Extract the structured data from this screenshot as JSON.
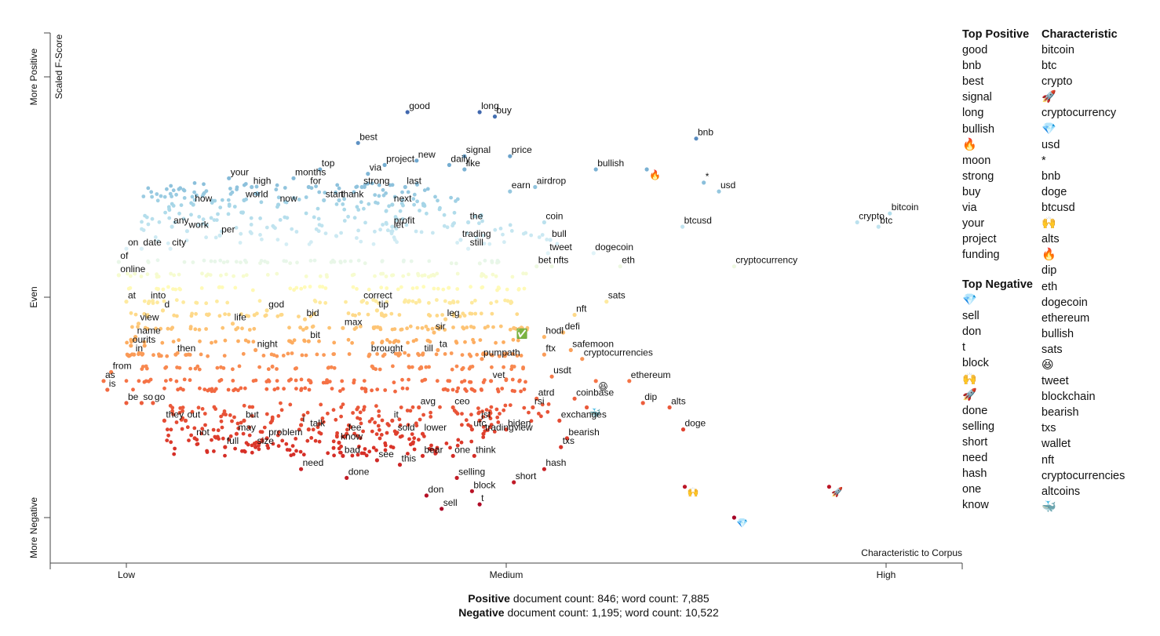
{
  "chart_data": {
    "type": "scatter",
    "xlabel": "Characteristic to Corpus",
    "ylabel": "Scaled F-Score",
    "x_ticks": [
      "Low",
      "Medium",
      "High"
    ],
    "y_ticks": [
      "More Negative",
      "Even",
      "More Positive"
    ],
    "labeled_points": [
      {
        "t": "good",
        "x": 0.37,
        "y": 0.92
      },
      {
        "t": "long",
        "x": 0.465,
        "y": 0.92
      },
      {
        "t": "buy",
        "x": 0.485,
        "y": 0.91
      },
      {
        "t": "best",
        "x": 0.305,
        "y": 0.85
      },
      {
        "t": "bnb",
        "x": 0.75,
        "y": 0.86
      },
      {
        "t": "signal",
        "x": 0.445,
        "y": 0.82
      },
      {
        "t": "price",
        "x": 0.505,
        "y": 0.82
      },
      {
        "t": "project",
        "x": 0.34,
        "y": 0.8
      },
      {
        "t": "new",
        "x": 0.382,
        "y": 0.81
      },
      {
        "t": "daily",
        "x": 0.425,
        "y": 0.8
      },
      {
        "t": "like",
        "x": 0.445,
        "y": 0.79
      },
      {
        "t": "bullish",
        "x": 0.618,
        "y": 0.79
      },
      {
        "t": "🔥",
        "x": 0.685,
        "y": 0.79
      },
      {
        "t": "top",
        "x": 0.255,
        "y": 0.79
      },
      {
        "t": "via",
        "x": 0.318,
        "y": 0.78
      },
      {
        "t": "your",
        "x": 0.135,
        "y": 0.77
      },
      {
        "t": "months",
        "x": 0.22,
        "y": 0.77
      },
      {
        "t": "*",
        "x": 0.76,
        "y": 0.76
      },
      {
        "t": "high",
        "x": 0.165,
        "y": 0.75
      },
      {
        "t": "for",
        "x": 0.24,
        "y": 0.75
      },
      {
        "t": "strong",
        "x": 0.31,
        "y": 0.75
      },
      {
        "t": "last",
        "x": 0.367,
        "y": 0.75
      },
      {
        "t": "airdrop",
        "x": 0.538,
        "y": 0.75
      },
      {
        "t": "usd",
        "x": 0.78,
        "y": 0.74
      },
      {
        "t": "world",
        "x": 0.155,
        "y": 0.72
      },
      {
        "t": "start",
        "x": 0.26,
        "y": 0.72
      },
      {
        "t": "thank",
        "x": 0.28,
        "y": 0.72
      },
      {
        "t": "now",
        "x": 0.2,
        "y": 0.71
      },
      {
        "t": "earn",
        "x": 0.505,
        "y": 0.74
      },
      {
        "t": "next",
        "x": 0.35,
        "y": 0.71
      },
      {
        "t": "crypto",
        "x": 0.962,
        "y": 0.67
      },
      {
        "t": "bitcoin",
        "x": 1.005,
        "y": 0.69
      },
      {
        "t": "btc",
        "x": 0.99,
        "y": 0.66
      },
      {
        "t": "how",
        "x": 0.088,
        "y": 0.71
      },
      {
        "t": "profit",
        "x": 0.35,
        "y": 0.66
      },
      {
        "t": "the",
        "x": 0.45,
        "y": 0.67
      },
      {
        "t": "coin",
        "x": 0.55,
        "y": 0.67
      },
      {
        "t": "btcusd",
        "x": 0.732,
        "y": 0.66
      },
      {
        "t": "any",
        "x": 0.06,
        "y": 0.66
      },
      {
        "t": "work",
        "x": 0.08,
        "y": 0.65
      },
      {
        "t": "per",
        "x": 0.123,
        "y": 0.64
      },
      {
        "t": "let",
        "x": 0.35,
        "y": 0.65
      },
      {
        "t": "trading",
        "x": 0.44,
        "y": 0.63
      },
      {
        "t": "still",
        "x": 0.45,
        "y": 0.61
      },
      {
        "t": "bull",
        "x": 0.558,
        "y": 0.63
      },
      {
        "t": "on",
        "x": 0.0,
        "y": 0.61
      },
      {
        "t": "date",
        "x": 0.02,
        "y": 0.61
      },
      {
        "t": "city",
        "x": 0.058,
        "y": 0.61
      },
      {
        "t": "tweet",
        "x": 0.555,
        "y": 0.6
      },
      {
        "t": "dogecoin",
        "x": 0.615,
        "y": 0.6
      },
      {
        "t": "of",
        "x": -0.01,
        "y": 0.58
      },
      {
        "t": "bet",
        "x": 0.54,
        "y": 0.57
      },
      {
        "t": "nfts",
        "x": 0.56,
        "y": 0.57
      },
      {
        "t": "eth",
        "x": 0.65,
        "y": 0.57
      },
      {
        "t": "cryptocurrency",
        "x": 0.8,
        "y": 0.57
      },
      {
        "t": "online",
        "x": -0.01,
        "y": 0.55
      },
      {
        "t": "at",
        "x": 0.0,
        "y": 0.49
      },
      {
        "t": "into",
        "x": 0.03,
        "y": 0.49
      },
      {
        "t": "correct",
        "x": 0.31,
        "y": 0.49
      },
      {
        "t": "sats",
        "x": 0.632,
        "y": 0.49
      },
      {
        "t": "d",
        "x": 0.048,
        "y": 0.47
      },
      {
        "t": "god",
        "x": 0.185,
        "y": 0.47
      },
      {
        "t": "tip",
        "x": 0.33,
        "y": 0.47
      },
      {
        "t": "nft",
        "x": 0.59,
        "y": 0.46
      },
      {
        "t": "bid",
        "x": 0.235,
        "y": 0.45
      },
      {
        "t": "life",
        "x": 0.14,
        "y": 0.44
      },
      {
        "t": "leg",
        "x": 0.42,
        "y": 0.45
      },
      {
        "t": "view",
        "x": 0.016,
        "y": 0.44
      },
      {
        "t": "max",
        "x": 0.285,
        "y": 0.43
      },
      {
        "t": "✅",
        "x": 0.51,
        "y": 0.43
      },
      {
        "t": "defi",
        "x": 0.575,
        "y": 0.42
      },
      {
        "t": "name",
        "x": 0.012,
        "y": 0.41
      },
      {
        "t": "sir",
        "x": 0.405,
        "y": 0.42
      },
      {
        "t": "hodl",
        "x": 0.55,
        "y": 0.41
      },
      {
        "t": "our",
        "x": 0.006,
        "y": 0.39
      },
      {
        "t": "its",
        "x": 0.024,
        "y": 0.39
      },
      {
        "t": "bit",
        "x": 0.24,
        "y": 0.4
      },
      {
        "t": "in",
        "x": 0.01,
        "y": 0.37
      },
      {
        "t": "then",
        "x": 0.065,
        "y": 0.37
      },
      {
        "t": "night",
        "x": 0.17,
        "y": 0.38
      },
      {
        "t": "brought",
        "x": 0.32,
        "y": 0.37
      },
      {
        "t": "till",
        "x": 0.39,
        "y": 0.37
      },
      {
        "t": "ta",
        "x": 0.41,
        "y": 0.38
      },
      {
        "t": "ftx",
        "x": 0.55,
        "y": 0.37
      },
      {
        "t": "safemoon",
        "x": 0.585,
        "y": 0.38
      },
      {
        "t": "pumpath",
        "x": 0.468,
        "y": 0.36
      },
      {
        "t": "cryptocurrencies",
        "x": 0.6,
        "y": 0.36
      },
      {
        "t": "from",
        "x": -0.02,
        "y": 0.33
      },
      {
        "t": "as",
        "x": -0.03,
        "y": 0.31
      },
      {
        "t": "usdt",
        "x": 0.56,
        "y": 0.32
      },
      {
        "t": "vet",
        "x": 0.48,
        "y": 0.31
      },
      {
        "t": "😆",
        "x": 0.618,
        "y": 0.31
      },
      {
        "t": "ethereum",
        "x": 0.662,
        "y": 0.31
      },
      {
        "t": "is",
        "x": -0.025,
        "y": 0.29
      },
      {
        "t": "atrd",
        "x": 0.54,
        "y": 0.27
      },
      {
        "t": "coinbase",
        "x": 0.59,
        "y": 0.27
      },
      {
        "t": "be",
        "x": 0.0,
        "y": 0.26
      },
      {
        "t": "so",
        "x": 0.02,
        "y": 0.26
      },
      {
        "t": "go",
        "x": 0.035,
        "y": 0.26
      },
      {
        "t": "dip",
        "x": 0.68,
        "y": 0.26
      },
      {
        "t": "alts",
        "x": 0.715,
        "y": 0.25
      },
      {
        "t": "rsi",
        "x": 0.535,
        "y": 0.25
      },
      {
        "t": "🐳",
        "x": 0.606,
        "y": 0.25
      },
      {
        "t": "avg",
        "x": 0.385,
        "y": 0.25
      },
      {
        "t": "ceo",
        "x": 0.43,
        "y": 0.25
      },
      {
        "t": "jst",
        "x": 0.465,
        "y": 0.22
      },
      {
        "t": "they",
        "x": 0.05,
        "y": 0.22
      },
      {
        "t": "out",
        "x": 0.078,
        "y": 0.22
      },
      {
        "t": "but",
        "x": 0.155,
        "y": 0.22
      },
      {
        "t": "it",
        "x": 0.35,
        "y": 0.22
      },
      {
        "t": "exchanges",
        "x": 0.57,
        "y": 0.22
      },
      {
        "t": "i",
        "x": 0.23,
        "y": 0.21
      },
      {
        "t": "utc",
        "x": 0.455,
        "y": 0.2
      },
      {
        "t": "biden",
        "x": 0.5,
        "y": 0.2
      },
      {
        "t": "doge",
        "x": 0.733,
        "y": 0.2
      },
      {
        "t": "talk",
        "x": 0.24,
        "y": 0.2
      },
      {
        "t": "may",
        "x": 0.145,
        "y": 0.19
      },
      {
        "t": "fee",
        "x": 0.29,
        "y": 0.19
      },
      {
        "t": "sold",
        "x": 0.355,
        "y": 0.19
      },
      {
        "t": "lower",
        "x": 0.39,
        "y": 0.19
      },
      {
        "t": "tradingview",
        "x": 0.47,
        "y": 0.19
      },
      {
        "t": "not",
        "x": 0.09,
        "y": 0.18
      },
      {
        "t": "bearish",
        "x": 0.58,
        "y": 0.18
      },
      {
        "t": "problem",
        "x": 0.185,
        "y": 0.18
      },
      {
        "t": "full",
        "x": 0.13,
        "y": 0.16
      },
      {
        "t": "know",
        "x": 0.28,
        "y": 0.17
      },
      {
        "t": "size",
        "x": 0.17,
        "y": 0.16
      },
      {
        "t": "txs",
        "x": 0.572,
        "y": 0.16
      },
      {
        "t": "bad",
        "x": 0.285,
        "y": 0.14
      },
      {
        "t": "one",
        "x": 0.43,
        "y": 0.14
      },
      {
        "t": "think",
        "x": 0.458,
        "y": 0.14
      },
      {
        "t": "bear",
        "x": 0.39,
        "y": 0.14
      },
      {
        "t": "see",
        "x": 0.33,
        "y": 0.13
      },
      {
        "t": "this",
        "x": 0.36,
        "y": 0.12
      },
      {
        "t": "need",
        "x": 0.23,
        "y": 0.11
      },
      {
        "t": "hash",
        "x": 0.55,
        "y": 0.11
      },
      {
        "t": "done",
        "x": 0.29,
        "y": 0.09
      },
      {
        "t": "selling",
        "x": 0.435,
        "y": 0.09
      },
      {
        "t": "short",
        "x": 0.51,
        "y": 0.08
      },
      {
        "t": "🙌",
        "x": 0.735,
        "y": 0.07
      },
      {
        "t": "🚀",
        "x": 0.925,
        "y": 0.07
      },
      {
        "t": "block",
        "x": 0.455,
        "y": 0.06
      },
      {
        "t": "don",
        "x": 0.395,
        "y": 0.05
      },
      {
        "t": "t",
        "x": 0.465,
        "y": 0.03
      },
      {
        "t": "sell",
        "x": 0.415,
        "y": 0.02
      },
      {
        "t": "💎",
        "x": 0.8,
        "y": 0.0
      }
    ]
  },
  "legend": {
    "top_positive": {
      "title": "Top Positive",
      "items": [
        "good",
        "bnb",
        "best",
        "signal",
        "long",
        "bullish",
        "🔥",
        "moon",
        "strong",
        "buy",
        "via",
        "your",
        "project",
        "funding"
      ]
    },
    "top_negative": {
      "title": "Top Negative",
      "items": [
        "💎",
        "sell",
        "don",
        "t",
        "block",
        "🙌",
        "🚀",
        "done",
        "selling",
        "short",
        "need",
        "hash",
        "one",
        "know"
      ]
    },
    "characteristic": {
      "title": "Characteristic",
      "items": [
        "bitcoin",
        "btc",
        "crypto",
        "🚀",
        "cryptocurrency",
        "💎",
        "usd",
        "*",
        "bnb",
        "doge",
        "btcusd",
        "🙌",
        "alts",
        "🔥",
        "dip",
        "eth",
        "dogecoin",
        "ethereum",
        "bullish",
        "sats",
        "😆",
        "tweet",
        "blockchain",
        "bearish",
        "txs",
        "wallet",
        "nft",
        "cryptocurrencies",
        "altcoins",
        "🐳"
      ]
    }
  },
  "footer": {
    "positive_label": "Positive",
    "positive_text": " document count: 846; word count: 7,885",
    "negative_label": "Negative",
    "negative_text": " document count: 1,195; word count: 10,522"
  }
}
